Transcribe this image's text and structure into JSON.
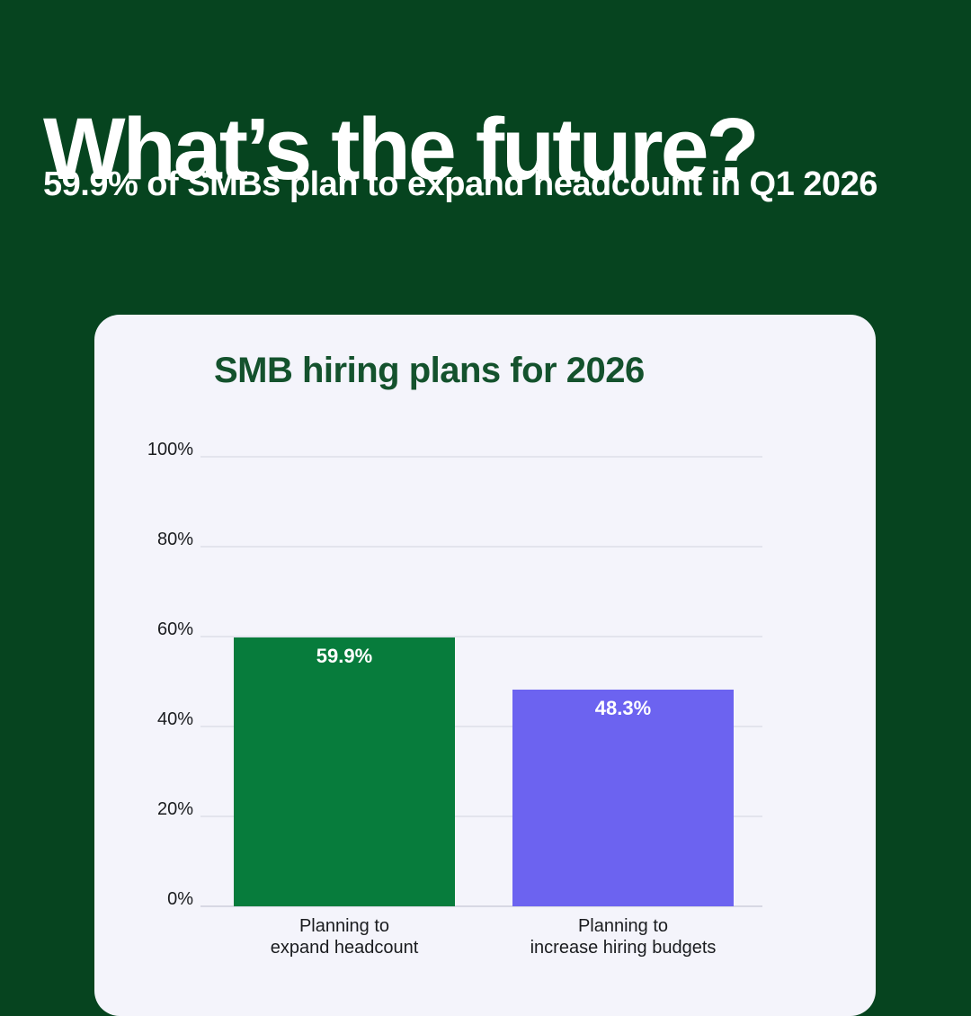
{
  "page": {
    "heading": "What’s the future?",
    "subheading": "59.9% of SMBs plan to expand headcount in Q1 2026"
  },
  "colors": {
    "background": "#06441F",
    "card_background": "#F4F4FB",
    "heading_text": "#FFFFFF",
    "chart_title_text": "#14522D",
    "gridline": "#E3E4ED",
    "axis_baseline": "#D7D8E3",
    "axis_label_text": "#1A1C1F",
    "bar_value_text": "#FFFFFF",
    "bar_green": "#077C3C",
    "bar_purple": "#6C63F0"
  },
  "chart_data": {
    "type": "bar",
    "title": "SMB hiring plans for 2026",
    "categories": [
      "Planning to\nexpand headcount",
      "Planning to\nincrease hiring budgets"
    ],
    "values": [
      59.9,
      48.3
    ],
    "value_labels": [
      "59.9%",
      "48.3%"
    ],
    "bar_colors": [
      "#077C3C",
      "#6C63F0"
    ],
    "xlabel": "",
    "ylabel": "",
    "ylim": [
      0,
      100
    ],
    "yticks": [
      0,
      20,
      40,
      60,
      80,
      100
    ],
    "ytick_labels": [
      "0%",
      "20%",
      "40%",
      "60%",
      "80%",
      "100%"
    ],
    "grid": "horizontal",
    "legend": "none"
  }
}
